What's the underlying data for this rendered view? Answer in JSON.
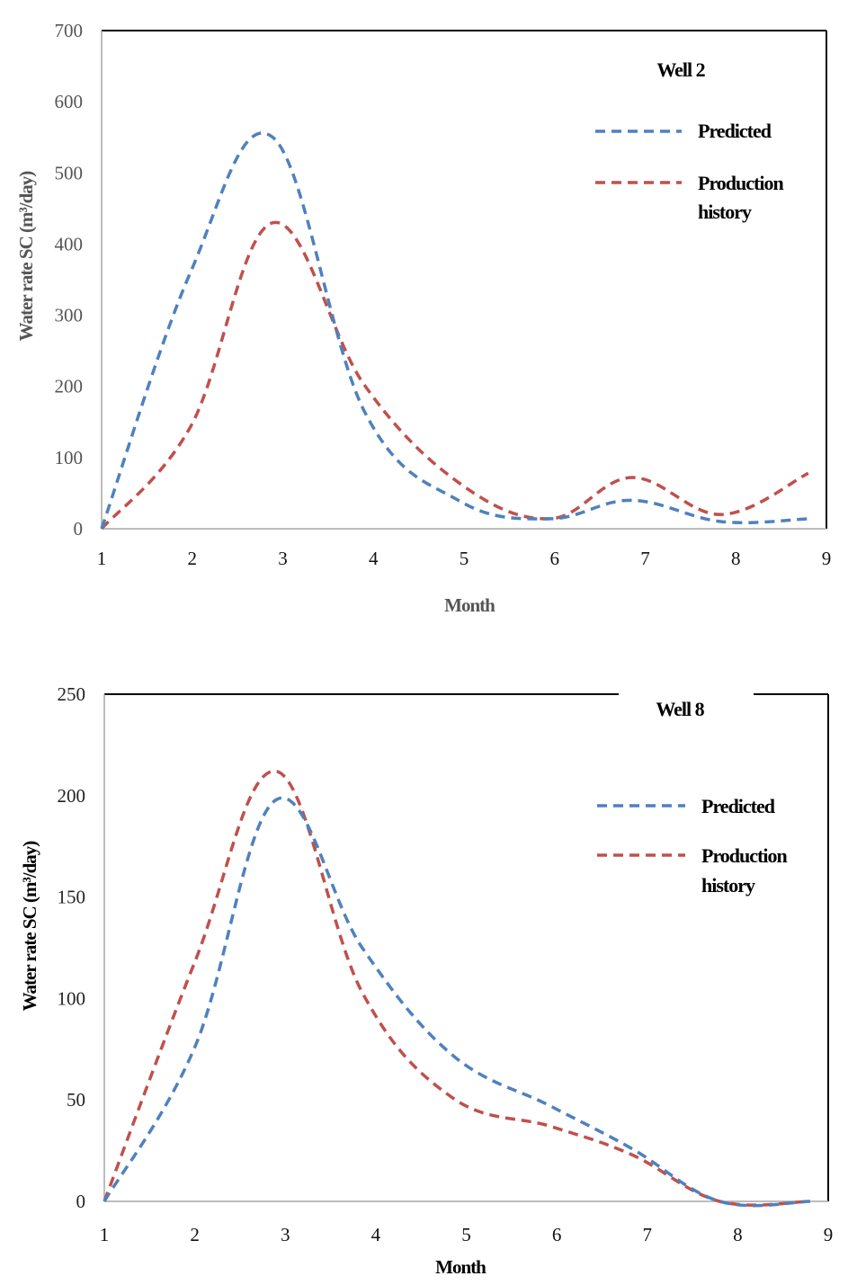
{
  "colors": {
    "predicted": "#4F81BD",
    "production_history": "#C0504D",
    "frame": "#000000",
    "axis": "#A6A6A6"
  },
  "chart_data": [
    {
      "type": "line",
      "title": "Well 2",
      "xlabel": "Month",
      "ylabel": "Water rate SC (m³/day)",
      "xlim": [
        1,
        9
      ],
      "ylim": [
        0,
        700
      ],
      "xticks": [
        1,
        2,
        3,
        4,
        5,
        6,
        7,
        8,
        9
      ],
      "yticks": [
        0,
        100,
        200,
        300,
        400,
        500,
        600,
        700
      ],
      "grid": false,
      "legend_position": "upper right",
      "x": [
        1,
        1.98,
        2.89,
        3.9,
        4.95,
        5.95,
        6.85,
        7.84,
        8.8
      ],
      "series": [
        {
          "name": "Predicted",
          "style": "dashed",
          "color": "#4F81BD",
          "values": [
            0,
            360,
            550,
            165,
            39,
            14,
            40,
            10,
            14
          ]
        },
        {
          "name": "Production history",
          "style": "dashed",
          "color": "#C0504D",
          "values": [
            0,
            143,
            430,
            202,
            64,
            14,
            72,
            20,
            78
          ]
        }
      ]
    },
    {
      "type": "line",
      "title": "Well 8",
      "xlabel": "Month",
      "ylabel": "Water rate SC (m³/day)",
      "xlim": [
        1,
        9
      ],
      "ylim": [
        0,
        250
      ],
      "xticks": [
        1,
        2,
        3,
        4,
        5,
        6,
        7,
        8,
        9
      ],
      "yticks": [
        0,
        50,
        100,
        150,
        200,
        250
      ],
      "grid": false,
      "legend_position": "upper right",
      "x": [
        1,
        2.0,
        2.9,
        3.85,
        4.85,
        5.93,
        6.83,
        7.8,
        8.8
      ],
      "series": [
        {
          "name": "Predicted",
          "style": "dashed",
          "color": "#4F81BD",
          "values": [
            0,
            76,
            198,
            125,
            72,
            47,
            26,
            0,
            0
          ]
        },
        {
          "name": "Production history",
          "style": "dashed",
          "color": "#C0504D",
          "values": [
            0,
            118,
            212,
            103,
            51,
            37,
            23,
            0,
            0
          ]
        }
      ]
    }
  ],
  "charts": [
    {
      "title": "Well 2",
      "xlabel": "Month",
      "ylabel": "Water rate SC (m³/day)",
      "legend": {
        "predicted": "Predicted",
        "history_line1": "Production",
        "history_line2": "history"
      }
    },
    {
      "title": "Well 8",
      "xlabel": "Month",
      "ylabel": "Water rate SC (m³/day)",
      "legend": {
        "predicted": "Predicted",
        "history_line1": "Production",
        "history_line2": "history"
      }
    }
  ]
}
